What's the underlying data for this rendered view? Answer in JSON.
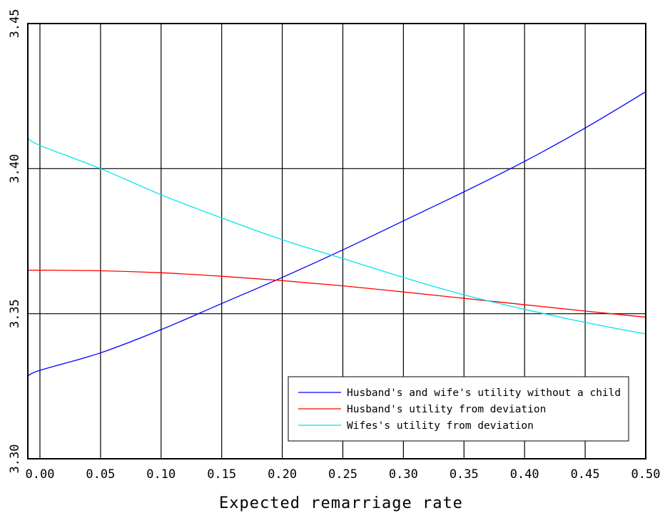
{
  "chart_data": {
    "type": "line",
    "title": "",
    "xlabel": "Expected remarriage rate",
    "ylabel": "",
    "xlim": [
      -0.01,
      0.5
    ],
    "ylim": [
      3.3,
      3.45
    ],
    "x_ticks": [
      0.0,
      0.05,
      0.1,
      0.15,
      0.2,
      0.25,
      0.3,
      0.35,
      0.4,
      0.45,
      0.5
    ],
    "x_tick_labels": [
      "0.00",
      "0.05",
      "0.10",
      "0.15",
      "0.20",
      "0.25",
      "0.30",
      "0.35",
      "0.40",
      "0.45",
      "0.50"
    ],
    "y_ticks": [
      3.3,
      3.35,
      3.4,
      3.45
    ],
    "y_tick_labels": [
      "3.30",
      "3.35",
      "3.40",
      "3.45"
    ],
    "grid": {
      "vertical": true,
      "horizontal": true
    },
    "legend_position": "bottom-right",
    "x": [
      -0.01,
      0.0,
      0.05,
      0.1,
      0.15,
      0.2,
      0.25,
      0.3,
      0.35,
      0.4,
      0.45,
      0.5
    ],
    "series": [
      {
        "name": "Husband's and wife's utility without a child",
        "color": "#0000ff",
        "values": [
          3.3285,
          3.3305,
          3.3365,
          3.3445,
          3.3535,
          3.3625,
          3.372,
          3.382,
          3.392,
          3.4025,
          3.414,
          3.4265
        ]
      },
      {
        "name": "Husband's utility from deviation",
        "color": "#ff0000",
        "values": [
          3.365,
          3.365,
          3.3648,
          3.3641,
          3.3629,
          3.3614,
          3.3596,
          3.3575,
          3.3553,
          3.3531,
          3.3509,
          3.3488
        ]
      },
      {
        "name": "Wifes's utility from deviation",
        "color": "#00e5ee",
        "values": [
          3.4105,
          3.408,
          3.4,
          3.391,
          3.383,
          3.3755,
          3.369,
          3.3625,
          3.3565,
          3.3515,
          3.347,
          3.343
        ]
      }
    ]
  }
}
